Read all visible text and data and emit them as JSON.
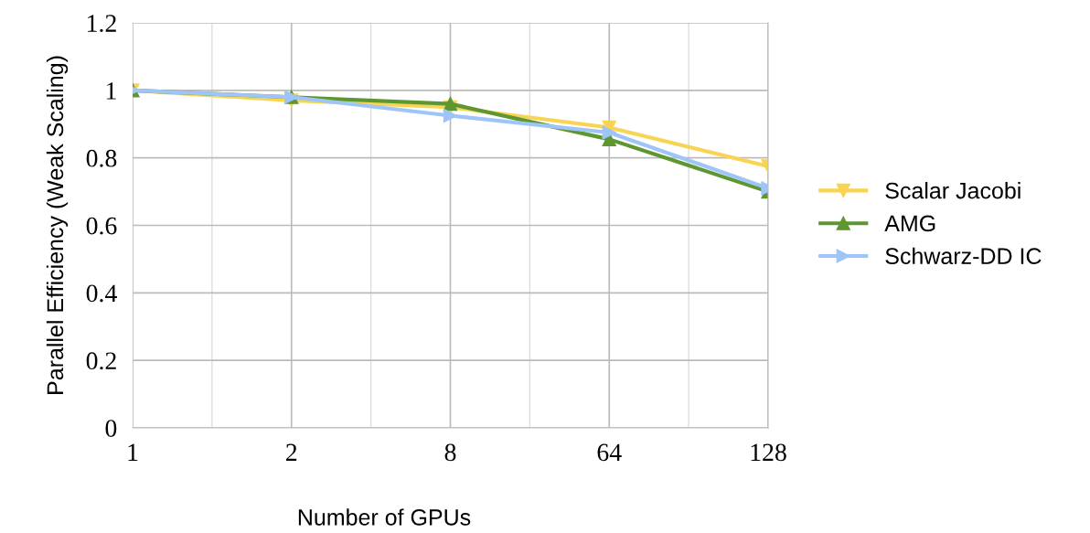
{
  "chart_data": {
    "type": "line",
    "xlabel": "Number of GPUs",
    "ylabel": "Parallel Efficiency (Weak Scaling)",
    "categories": [
      "1",
      "2",
      "8",
      "64",
      "128"
    ],
    "ylim": [
      0,
      1.2
    ],
    "yticks": [
      0,
      0.2,
      0.4,
      0.6,
      0.8,
      1,
      1.2
    ],
    "grid": true,
    "legend": "right",
    "line_style": "solid",
    "series": [
      {
        "name": "Scalar Jacobi",
        "color": "#f9d452",
        "marker": "triangle_down",
        "values": [
          1,
          0.97,
          0.95,
          0.89,
          0.775
        ]
      },
      {
        "name": "AMG",
        "color": "#5e9732",
        "marker": "triangle",
        "values": [
          1,
          0.98,
          0.96,
          0.855,
          0.7
        ]
      },
      {
        "name": "Schwarz-DD IC",
        "color": "#9fc5f8",
        "marker": "triangle_right",
        "values": [
          1,
          0.98,
          0.925,
          0.875,
          0.71
        ]
      }
    ]
  }
}
